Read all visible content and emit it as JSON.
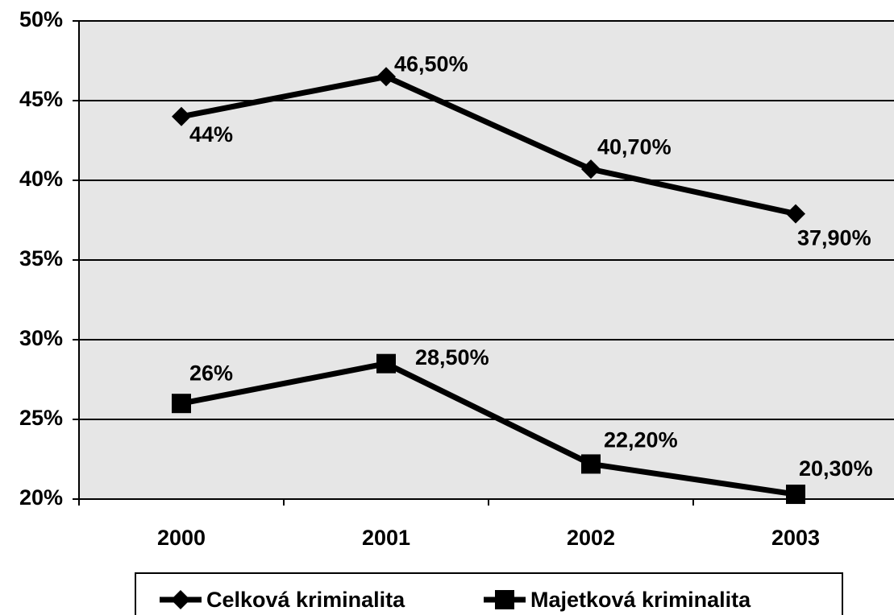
{
  "chart_data": {
    "type": "line",
    "categories": [
      "2000",
      "2001",
      "2002",
      "2003"
    ],
    "series": [
      {
        "name": "Celková kriminalita",
        "color": "#000000",
        "marker": "diamond",
        "values": [
          44,
          46.5,
          40.7,
          37.9
        ],
        "value_labels": [
          "44%",
          "46,50%",
          "40,70%",
          "37,90%"
        ]
      },
      {
        "name": "Majetková kriminalita",
        "color": "#000000",
        "marker": "square",
        "values": [
          26,
          28.5,
          22.2,
          20.3
        ],
        "value_labels": [
          "26%",
          "28,50%",
          "22,20%",
          "20,30%"
        ]
      }
    ],
    "ylim": [
      20,
      50
    ],
    "yticks": [
      {
        "value": 20,
        "label": "20%"
      },
      {
        "value": 25,
        "label": "25%"
      },
      {
        "value": 30,
        "label": "30%"
      },
      {
        "value": 35,
        "label": "35%"
      },
      {
        "value": 40,
        "label": "40%"
      },
      {
        "value": 45,
        "label": "45%"
      },
      {
        "value": 50,
        "label": "50%"
      }
    ],
    "grid": true,
    "legend": "bottom"
  }
}
